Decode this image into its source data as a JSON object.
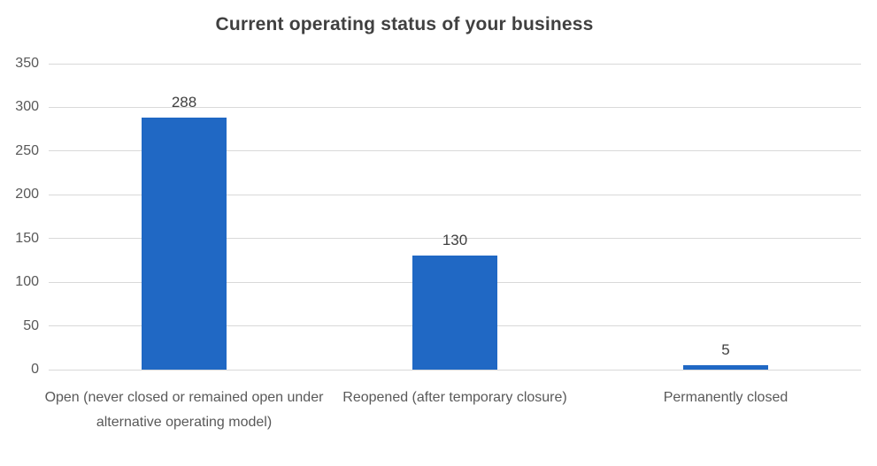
{
  "chart_data": {
    "type": "bar",
    "title": "Current operating status of your business",
    "categories": [
      "Open (never closed or remained open under alternative operating model)",
      "Reopened (after temporary closure)",
      "Permanently closed"
    ],
    "values": [
      288,
      130,
      5
    ],
    "data_labels": [
      "288",
      "130",
      "5"
    ],
    "xlabel": "",
    "ylabel": "",
    "ylim": [
      0,
      350
    ],
    "yticks": [
      0,
      50,
      100,
      150,
      200,
      250,
      300,
      350
    ],
    "grid": true,
    "legend": "none",
    "colors": {
      "bar_fill": "#2068c4",
      "title_text": "#404040",
      "axis_text": "#595959",
      "gridline": "#d9d9d9",
      "background": "#ffffff"
    }
  }
}
